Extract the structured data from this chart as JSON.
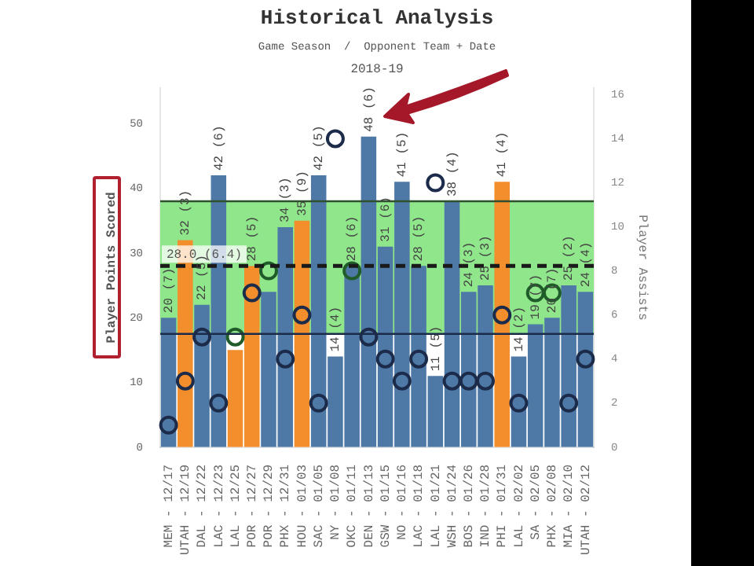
{
  "chart_data": {
    "type": "bar",
    "title": "Historical Analysis",
    "subtitle": "Game Season  /  Opponent Team + Date",
    "ylabel": "Player Points Scored",
    "y2label": "Player Assists",
    "annotations": [
      "2018-19"
    ],
    "categories": [
      "MEM - 12/17",
      "UTAH - 12/19",
      "DAL - 12/22",
      "LAC - 12/23",
      "LAL - 12/25",
      "POR - 12/27",
      "POR - 12/29",
      "PHX - 12/31",
      "HOU - 01/03",
      "SAC - 01/05",
      "NY - 01/08",
      "OKC - 01/11",
      "DEN - 01/13",
      "GSW - 01/15",
      "NO - 01/16",
      "LAC - 01/18",
      "LAL - 01/21",
      "WSH - 01/24",
      "BOS - 01/26",
      "IND - 01/28",
      "PHI - 01/31",
      "LAL - 02/02",
      "SA - 02/05",
      "PHX - 02/08",
      "MIA - 02/10",
      "UTAH - 02/12"
    ],
    "series": [
      {
        "colors": [
          "#4e79a7",
          "#f28e2b",
          "#4e79a7",
          "#4e79a7",
          "#f28e2b",
          "#f28e2b",
          "#4e79a7",
          "#4e79a7",
          "#f28e2b",
          "#4e79a7",
          "#4e79a7",
          "#4e79a7",
          "#4e79a7",
          "#4e79a7",
          "#4e79a7",
          "#4e79a7",
          "#4e79a7",
          "#4e79a7",
          "#4e79a7",
          "#4e79a7",
          "#f28e2b",
          "#4e79a7",
          "#4e79a7",
          "#4e79a7",
          "#4e79a7",
          "#4e79a7"
        ],
        "values": [
          20,
          32,
          22,
          42,
          15,
          28,
          24,
          34,
          35,
          42,
          14,
          28,
          48,
          31,
          41,
          28,
          11,
          38,
          24,
          25,
          41,
          14,
          19,
          20,
          25,
          24
        ],
        "value_labels": [
          "20 (7)",
          "32 (3)",
          "22 (5)",
          "42 (6)",
          null,
          "28 (5)",
          null,
          "34 (3)",
          "35 (9)",
          "42 (5)",
          "14 (4)",
          "28 (6)",
          "48 (6)",
          "31 (6)",
          "41 (5)",
          "28 (5)",
          "11 (5)",
          "38 (4)",
          "24 (3)",
          "25 (3)",
          "41 (4)",
          "14 (2)",
          "19 (7)",
          "20 (7)",
          "25 (2)",
          "24 (4)"
        ]
      },
      {
        "type": "scatter",
        "axis": "y2",
        "marker": "circle",
        "colors": [
          "#1c2b4a",
          "#1c2b4a",
          "#1c2b4a",
          "#1c2b4a",
          "#1f5c2a",
          "#1c2b4a",
          "#1f5c2a",
          "#1c2b4a",
          "#1c2b4a",
          "#1c2b4a",
          "#1c2b4a",
          "#1f5c2a",
          "#1c2b4a",
          "#1c2b4a",
          "#1c2b4a",
          "#1c2b4a",
          "#1c2b4a",
          "#1c2b4a",
          "#1c2b4a",
          "#1c2b4a",
          "#1c2b4a",
          "#1c2b4a",
          "#1f5c2a",
          "#1f5c2a",
          "#1c2b4a",
          "#1c2b4a"
        ],
        "values": [
          1,
          3,
          5,
          2,
          5,
          7,
          8,
          4,
          6,
          2,
          14,
          8,
          5,
          4,
          3,
          4,
          12,
          3,
          3,
          3,
          6,
          2,
          7,
          7,
          2,
          4
        ]
      }
    ],
    "ref_lines": [
      {
        "axis": "y",
        "value": 38,
        "color": "#2f4f2f",
        "line_style": "solid"
      },
      {
        "axis": "y",
        "value": 28,
        "label": "28.0 (6.4)",
        "color": "#1a1a1a",
        "line_style": "dashed"
      },
      {
        "axis": "y",
        "value": 17.5,
        "color": "#1c2b4a",
        "line_style": "solid"
      }
    ],
    "bands": [
      {
        "axis": "y",
        "from": 17.5,
        "to": 38,
        "color": "#90e68a"
      }
    ],
    "ylim": [
      0,
      55.5
    ],
    "yticks": [
      0,
      10,
      20,
      30,
      40,
      50
    ],
    "y2lim": [
      0,
      16.3
    ],
    "y2ticks": [
      0,
      2,
      4,
      6,
      8,
      10,
      12,
      14,
      16
    ],
    "grid": false,
    "legend": false
  }
}
